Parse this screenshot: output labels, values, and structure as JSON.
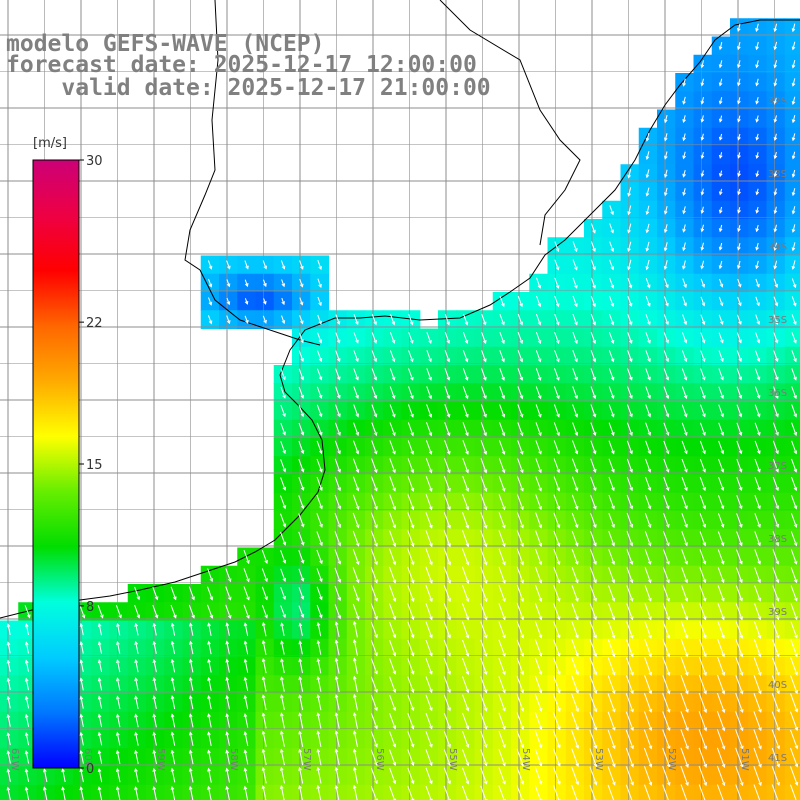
{
  "title": {
    "line1": "modelo GEFS-WAVE (NCEP)",
    "line2": "forecast date: 2025-12-17 12:00:00",
    "line3": "    valid date: 2025-12-17 21:00:00"
  },
  "colorbar": {
    "unit": "[m/s]",
    "ticks": [
      {
        "value": 30,
        "label": "30"
      },
      {
        "value": 22,
        "label": "22"
      },
      {
        "value": 15,
        "label": "15"
      },
      {
        "value": 8,
        "label": "8"
      },
      {
        "value": 0,
        "label": "0"
      }
    ],
    "vmin": 0,
    "vmax": 30,
    "stops": [
      "#0000ff",
      "#0077ff",
      "#00ccff",
      "#00ffdd",
      "#00dd00",
      "#66ee00",
      "#ffff00",
      "#ffaa00",
      "#ff6600",
      "#ff0000",
      "#ee0044",
      "#cc0077"
    ]
  },
  "lat_labels": [
    "32S",
    "33S",
    "34S",
    "35S",
    "36S",
    "37S",
    "38S",
    "39S",
    "40S",
    "41S"
  ],
  "lon_labels": [
    "61W",
    "60W",
    "59W",
    "58W",
    "57W",
    "56W",
    "55W",
    "54W",
    "53W",
    "52W",
    "51W"
  ],
  "colors": {
    "grid": "#8c8c8c",
    "coast": "#000000",
    "arrow": "#ffffff",
    "title": "#808080"
  }
}
